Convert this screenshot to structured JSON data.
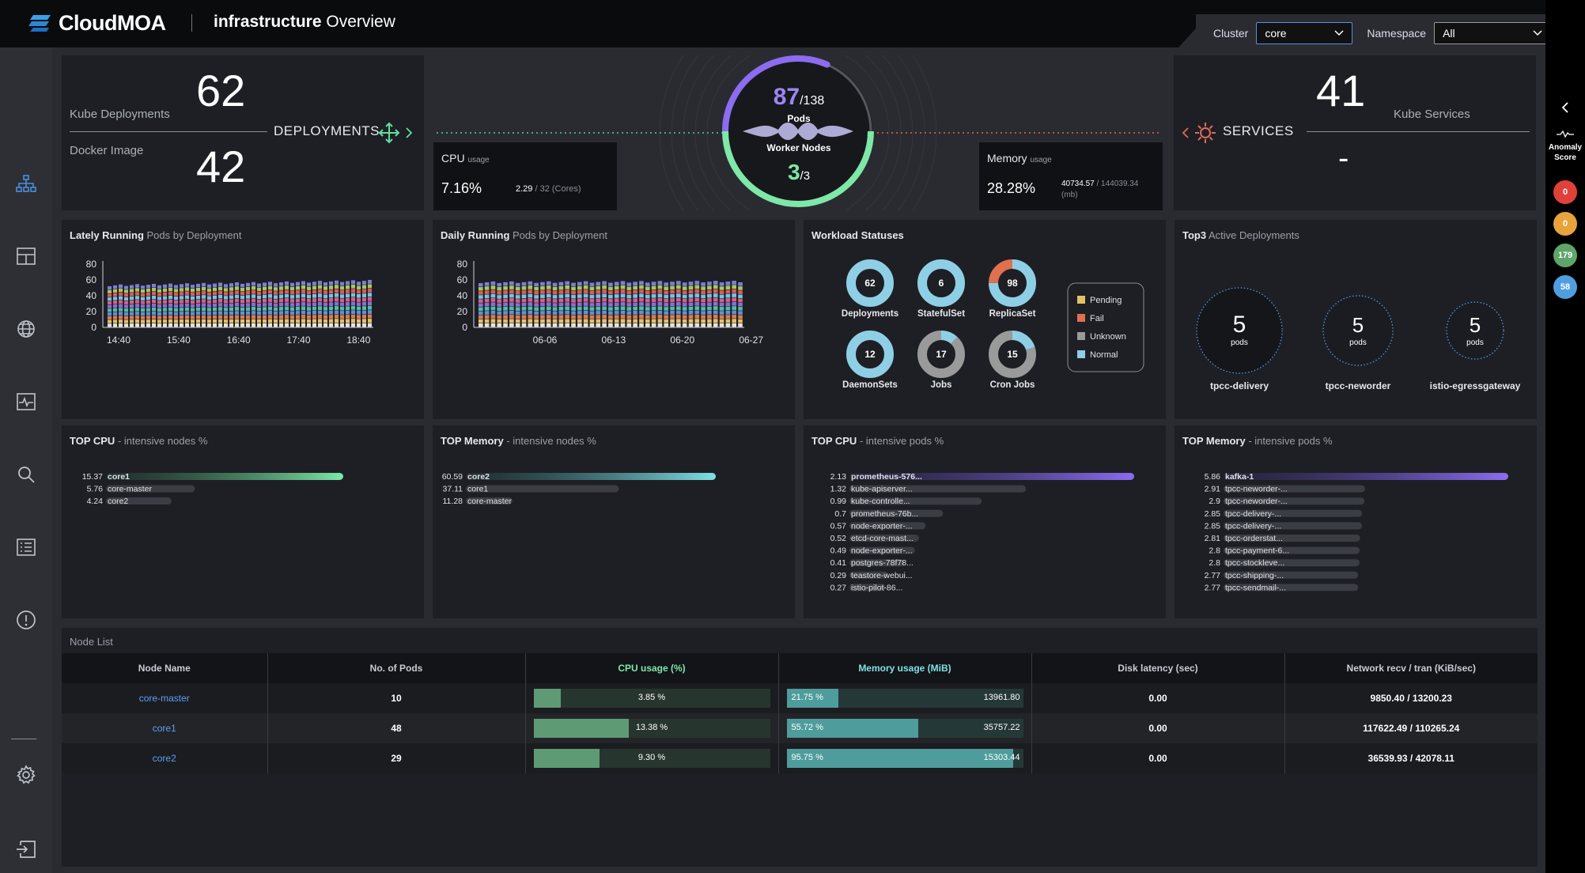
{
  "app": {
    "name": "CloudMOA",
    "title_bold": "infrastructure",
    "title_rest": " Overview"
  },
  "filters": {
    "cluster_label": "Cluster",
    "cluster_value": "core",
    "namespace_label": "Namespace",
    "namespace_value": "All"
  },
  "deployments": {
    "kube_label": "Kube Deployments",
    "kube_value": "62",
    "docker_label": "Docker Image",
    "docker_value": "42",
    "title": "DEPLOYMENTS"
  },
  "services": {
    "value": "41",
    "label": "Kube Services",
    "title": "SERVICES",
    "secondary": "-"
  },
  "pods": {
    "running": "87",
    "total": "/138",
    "label": "Pods"
  },
  "nodes": {
    "label": "Worker Nodes",
    "running": "3",
    "total": "/3"
  },
  "cpu": {
    "title": "CPU",
    "sub": "usage",
    "percent": "7.16%",
    "used": "2.29",
    "total": " / 32 (Cores)"
  },
  "memory": {
    "title": "Memory",
    "sub": "usage",
    "percent": "28.28%",
    "used": "40734.57",
    "total": " / 144039.34",
    "unit": "(mb)"
  },
  "lately": {
    "title_bold": "Lately Running",
    "title_rest": " Pods by Deployment"
  },
  "daily": {
    "title_bold": "Daily Running",
    "title_rest": " Pods by Deployment"
  },
  "workload": {
    "title": "Workload Statuses",
    "items": [
      {
        "name": "Deployments",
        "value": "62"
      },
      {
        "name": "StatefulSet",
        "value": "6"
      },
      {
        "name": "ReplicaSet",
        "value": "98"
      },
      {
        "name": "DaemonSets",
        "value": "12"
      },
      {
        "name": "Jobs",
        "value": "17"
      },
      {
        "name": "Cron Jobs",
        "value": "15"
      }
    ],
    "legend": [
      "Pending",
      "Fail",
      "Unknown",
      "Normal"
    ],
    "legend_colors": [
      "#e2c265",
      "#e07050",
      "#9a9a9a",
      "#8ecfe6"
    ]
  },
  "top3": {
    "title_bold": "Top3",
    "title_rest": " Active Deployments",
    "items": [
      {
        "name": "tpcc-delivery",
        "value": "5",
        "unit": "pods"
      },
      {
        "name": "tpcc-neworder",
        "value": "5",
        "unit": "pods"
      },
      {
        "name": "istio-egressgateway",
        "value": "5",
        "unit": "pods"
      }
    ]
  },
  "top_cpu_nodes": {
    "title_bold": "TOP CPU",
    "title_rest": " - intensive nodes %"
  },
  "top_mem_nodes": {
    "title_bold": "TOP Memory",
    "title_rest": " - intensive nodes %"
  },
  "top_cpu_pods": {
    "title_bold": "TOP CPU",
    "title_rest": " - intensive pods %"
  },
  "top_mem_pods": {
    "title_bold": "TOP Memory",
    "title_rest": " - intensive pods %"
  },
  "node_list": {
    "title": "Node List",
    "headers": [
      "Node Name",
      "No. of Pods",
      "CPU usage (%)",
      "Memory usage (MiB)",
      "Disk latency (sec)",
      "Network recv / tran (KiB/sec)"
    ],
    "rows": [
      {
        "name": "core-master",
        "pods": "10",
        "cpu": "3.85 %",
        "cpu_frac": 0.0385,
        "mem_pct": "21.75 %",
        "mem_frac": 0.2175,
        "mem": "13961.80",
        "disk": "0.00",
        "net": "9850.40 / 13200.23"
      },
      {
        "name": "core1",
        "pods": "48",
        "cpu": "13.38 %",
        "cpu_frac": 0.1338,
        "mem_pct": "55.72 %",
        "mem_frac": 0.5572,
        "mem": "35757.22",
        "disk": "0.00",
        "net": "117622.49 / 110265.24"
      },
      {
        "name": "core2",
        "pods": "29",
        "cpu": "9.30 %",
        "cpu_frac": 0.093,
        "mem_pct": "95.75 %",
        "mem_frac": 0.9575,
        "mem": "15303.44",
        "disk": "0.00",
        "net": "36539.93 / 42078.11"
      }
    ]
  },
  "anomaly": {
    "label1": "Anomaly",
    "label2": "Score",
    "scores": [
      "0",
      "0",
      "179",
      "58"
    ],
    "colors": [
      "#e0413a",
      "#e8a33a",
      "#5fa56a",
      "#4f9fe0"
    ]
  },
  "chart_data": [
    {
      "type": "bar",
      "title": "Lately Running Pods by Deployment",
      "ylim": [
        0,
        80
      ],
      "yticks": [
        0,
        20,
        40,
        60,
        80
      ],
      "xticks": [
        "14:40",
        "15:40",
        "16:40",
        "17:40",
        "18:40"
      ],
      "bars": 48,
      "totals_first": 52,
      "totals_last": 58,
      "stacked": true
    },
    {
      "type": "bar",
      "title": "Daily Running Pods by Deployment",
      "ylim": [
        0,
        80
      ],
      "yticks": [
        0,
        20,
        40,
        60,
        80
      ],
      "xticks": [
        "06-06",
        "06-13",
        "06-20",
        "06-27"
      ],
      "bars": 43,
      "totals_first": 56,
      "totals_last": 57,
      "stacked": true
    },
    {
      "type": "bar",
      "title": "TOP CPU - intensive nodes %",
      "categories": [
        "core1",
        "core-master",
        "core2"
      ],
      "values": [
        15.37,
        5.76,
        4.24
      ]
    },
    {
      "type": "bar",
      "title": "TOP Memory - intensive nodes %",
      "categories": [
        "core2",
        "core1",
        "core-master"
      ],
      "values": [
        60.59,
        37.11,
        11.28
      ]
    },
    {
      "type": "bar",
      "title": "TOP CPU - intensive pods %",
      "categories": [
        "prometheus-576...",
        "kube-apiserver...",
        "kube-controlle...",
        "prometheus-76b...",
        "node-exporter-...",
        "etcd-core-mast...",
        "node-exporter-...",
        "postgres-78f78...",
        "teastore-webui...",
        "istio-pilot-86..."
      ],
      "values": [
        2.13,
        1.32,
        0.99,
        0.7,
        0.57,
        0.52,
        0.49,
        0.41,
        0.29,
        0.27
      ]
    },
    {
      "type": "bar",
      "title": "TOP Memory - intensive pods %",
      "categories": [
        "kafka-1",
        "tpcc-neworder-...",
        "tpcc-neworder-...",
        "tpcc-delivery-...",
        "tpcc-delivery-...",
        "tpcc-orderstat...",
        "tpcc-payment-6...",
        "tpcc-stockleve...",
        "tpcc-shipping-...",
        "tpcc-sendmail-..."
      ],
      "values": [
        5.86,
        2.91,
        2.9,
        2.85,
        2.85,
        2.81,
        2.8,
        2.8,
        2.77,
        2.77
      ]
    }
  ]
}
